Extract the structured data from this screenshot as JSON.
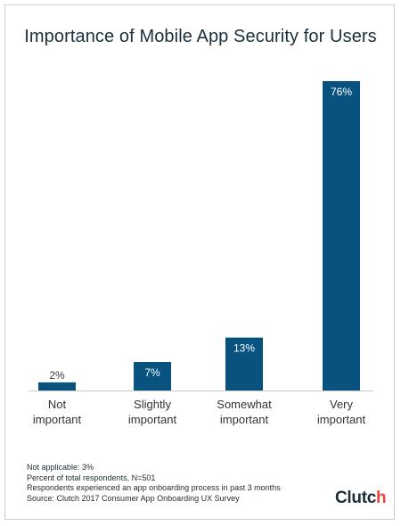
{
  "chart_data": {
    "type": "bar",
    "title": "Importance of Mobile App Security for Users",
    "categories": [
      "Not important",
      "Slightly important",
      "Somewhat important",
      "Very important"
    ],
    "category_lines": [
      [
        "Not",
        "important"
      ],
      [
        "Slightly",
        "important"
      ],
      [
        "Somewhat",
        "important"
      ],
      [
        "Very",
        "important"
      ]
    ],
    "values": [
      2,
      7,
      13,
      76
    ],
    "value_labels": [
      "2%",
      "7%",
      "13%",
      "76%"
    ],
    "ylim": [
      0,
      76
    ],
    "grid": false,
    "bar_color": "#08527f"
  },
  "notes": [
    "Not applicable: 3%",
    "Percent of total respondents, N=501",
    "Respondents experienced an app onboarding process in past 3 months",
    "Source: Clutch 2017 Consumer App Onboarding UX Survey"
  ],
  "logo": {
    "text_main": "Clutc",
    "text_accent": "h",
    "accent_color": "#e8473f"
  }
}
